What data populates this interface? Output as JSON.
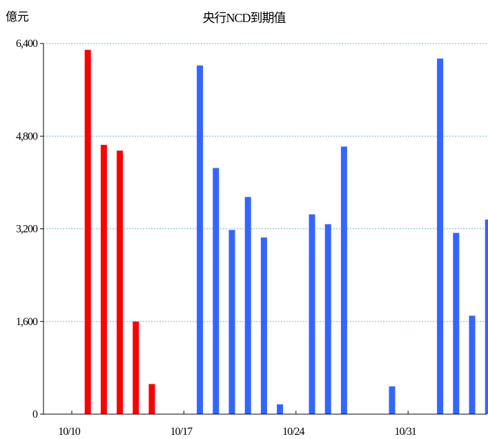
{
  "chart_data": {
    "type": "bar",
    "title": "央行NCD到期值",
    "ylabel": "億元",
    "xlabel": "",
    "ylim": [
      0,
      6400
    ],
    "yticks": [
      0,
      1600,
      3200,
      4800,
      6400
    ],
    "ytick_labels": [
      "0",
      "1,600",
      "3,200",
      "4,800",
      "6,400"
    ],
    "xtick_labels": [
      "10/10",
      "10/17",
      "10/24",
      "10/31"
    ],
    "grid": "horizontal dashed",
    "colors": {
      "first_segment": "#ff0000",
      "second_segment": "#3366ff"
    },
    "x": [
      "10/11",
      "10/12",
      "10/13",
      "10/14",
      "10/15",
      "10/16",
      "10/17",
      "10/18",
      "10/19",
      "10/20",
      "10/21",
      "10/22",
      "10/23",
      "10/24",
      "10/25",
      "10/26",
      "10/27",
      "10/28",
      "10/29",
      "10/30",
      "10/31",
      "11/01",
      "11/02",
      "11/03",
      "11/04",
      "11/05",
      "11/06"
    ],
    "series": [
      {
        "color": "#ff0000",
        "values": [
          6290,
          4650,
          4550,
          1600,
          520,
          0,
          0,
          0,
          0,
          0,
          0,
          0,
          0,
          0,
          0,
          0,
          0,
          0,
          0,
          0,
          0,
          0,
          0,
          0,
          0,
          0,
          0
        ]
      },
      {
        "color": "#3366ff",
        "values": [
          0,
          0,
          0,
          0,
          0,
          0,
          0,
          6020,
          4250,
          3180,
          3750,
          3050,
          170,
          0,
          3450,
          3280,
          4620,
          0,
          0,
          480,
          0,
          0,
          6140,
          3130,
          1700,
          3360,
          0
        ]
      }
    ]
  }
}
